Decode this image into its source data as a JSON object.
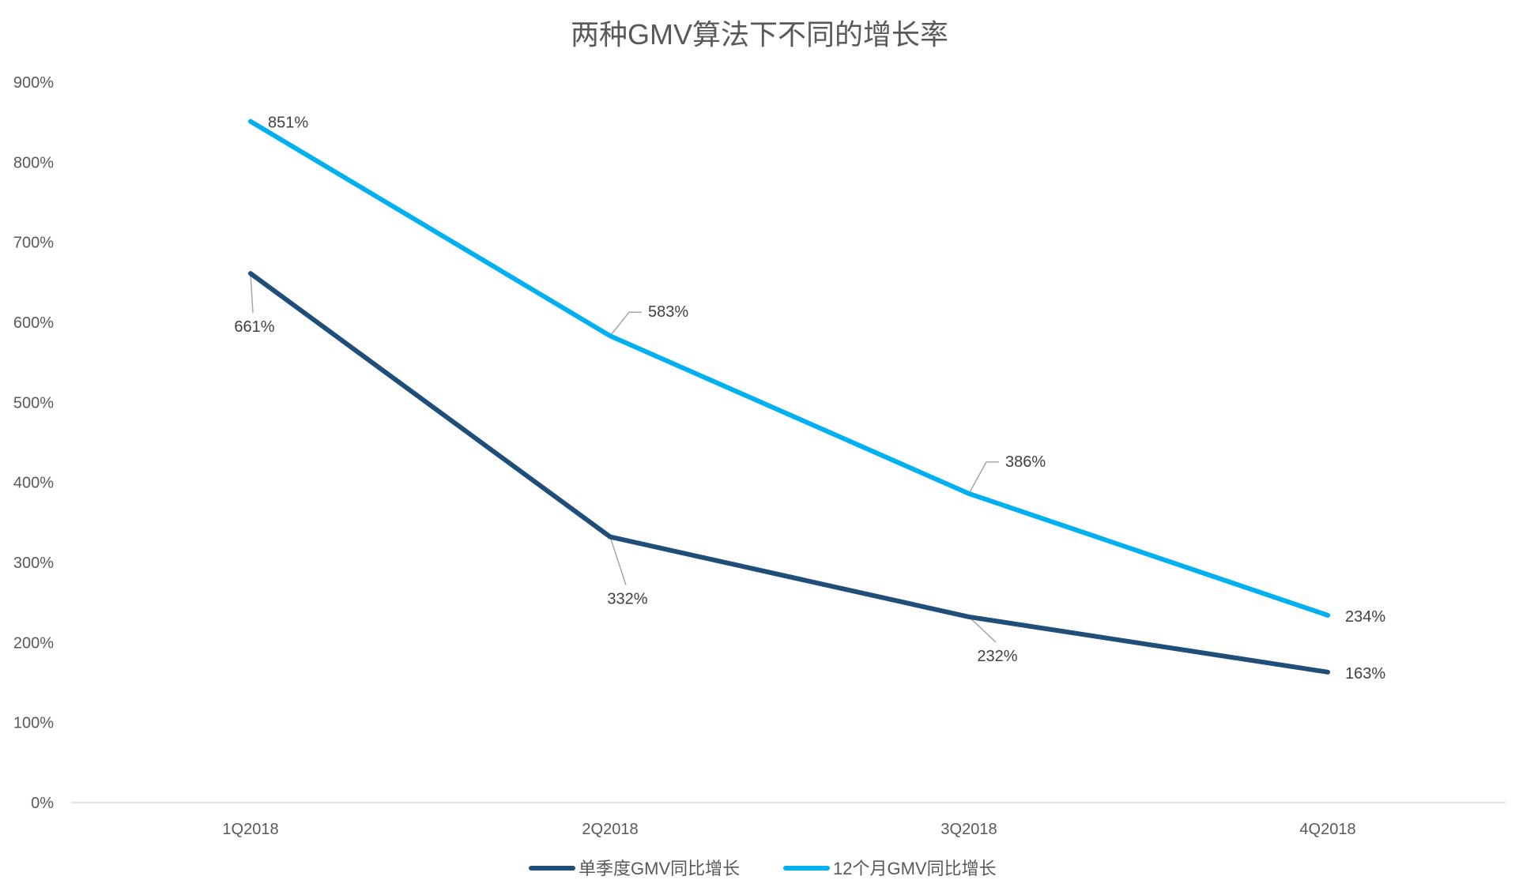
{
  "chart_data": {
    "type": "line",
    "title": "两种GMV算法下不同的增长率",
    "categories": [
      "1Q2018",
      "2Q2018",
      "3Q2018",
      "4Q2018"
    ],
    "y_tick_labels": [
      "0%",
      "100%",
      "200%",
      "300%",
      "400%",
      "500%",
      "600%",
      "700%",
      "800%",
      "900%"
    ],
    "ylim": [
      0,
      900
    ],
    "grid": false,
    "legend_position": "bottom",
    "series": [
      {
        "name": "单季度GMV同比增长",
        "color": "#1F4E79",
        "values": [
          661,
          332,
          232,
          163
        ],
        "labels": [
          "661%",
          "332%",
          "232%",
          "163%"
        ]
      },
      {
        "name": "12个月GMV同比增长",
        "color": "#00B0F0",
        "values": [
          851,
          583,
          386,
          234
        ],
        "labels": [
          "851%",
          "583%",
          "386%",
          "234%"
        ]
      }
    ]
  }
}
